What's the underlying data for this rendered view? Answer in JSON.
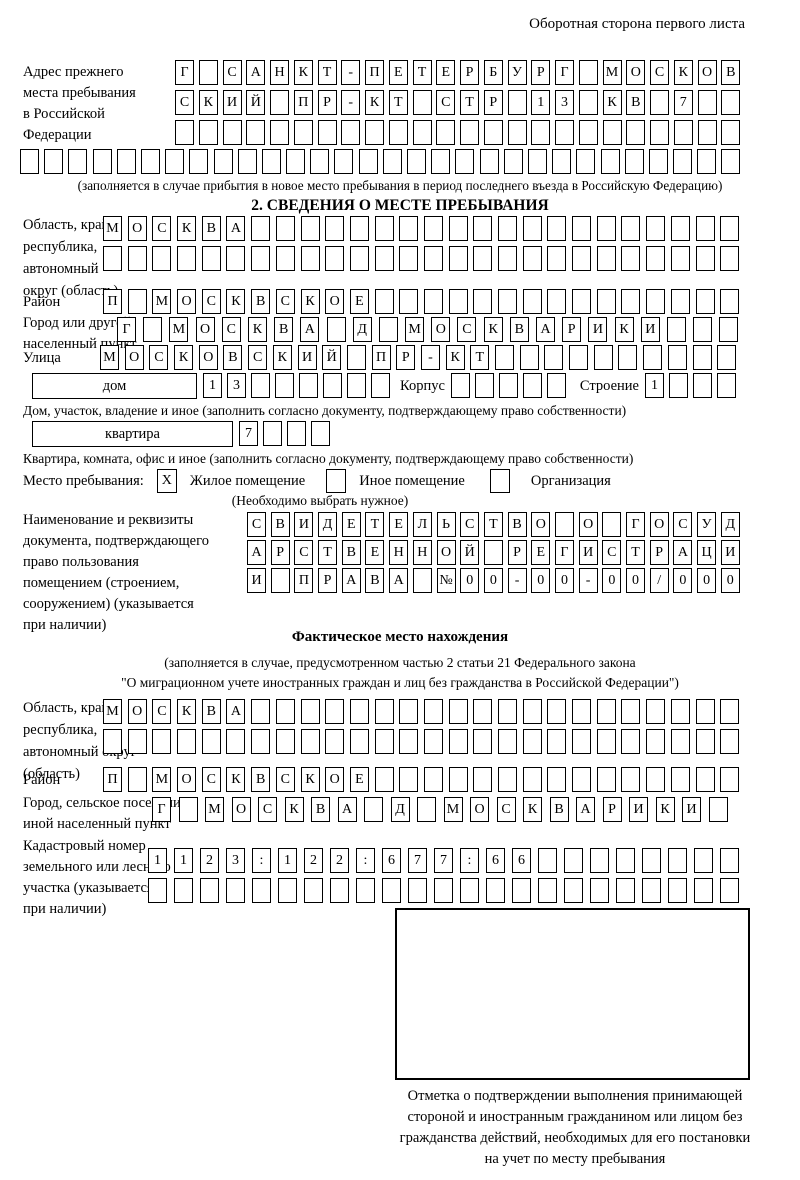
{
  "page": {
    "title": "Оборотная сторона первого листа"
  },
  "colors": {
    "ink": "#000000",
    "paper": "#ffffff"
  },
  "prev_address": {
    "label": "Адрес прежнего\nместа пребывания\nв Российской\nФедерации",
    "rows": [
      [
        "Г",
        "",
        "С",
        "А",
        "Н",
        "К",
        "Т",
        "-",
        "П",
        "Е",
        "Т",
        "Е",
        "Р",
        "Б",
        "У",
        "Р",
        "Г",
        "",
        "М",
        "О",
        "С",
        "К",
        "О",
        "В"
      ],
      [
        "С",
        "К",
        "И",
        "Й",
        "",
        "П",
        "Р",
        "-",
        "К",
        "Т",
        "",
        "С",
        "Т",
        "Р",
        "",
        "1",
        "3",
        "",
        "К",
        "В",
        "",
        "7",
        "",
        ""
      ],
      [
        "",
        "",
        "",
        "",
        "",
        "",
        "",
        "",
        "",
        "",
        "",
        "",
        "",
        "",
        "",
        "",
        "",
        "",
        "",
        "",
        "",
        "",
        "",
        ""
      ]
    ],
    "row_full": [
      "",
      "",
      "",
      "",
      "",
      "",
      "",
      "",
      "",
      "",
      "",
      "",
      "",
      "",
      "",
      "",
      "",
      "",
      "",
      "",
      "",
      "",
      "",
      "",
      "",
      "",
      "",
      "",
      "",
      ""
    ],
    "note": "(заполняется в случае прибытия в новое место пребывания в период последнего въезда в Российскую Федерацию)"
  },
  "stay_info": {
    "title": "2. СВЕДЕНИЯ О МЕСТЕ ПРЕБЫВАНИЯ",
    "region": {
      "label": "Область, край,\nреспублика,\nавтономный\nокруг (область)",
      "rows": [
        [
          "М",
          "О",
          "С",
          "К",
          "В",
          "А",
          "",
          "",
          "",
          "",
          "",
          "",
          "",
          "",
          "",
          "",
          "",
          "",
          "",
          "",
          "",
          "",
          "",
          "",
          "",
          ""
        ],
        [
          "",
          "",
          "",
          "",
          "",
          "",
          "",
          "",
          "",
          "",
          "",
          "",
          "",
          "",
          "",
          "",
          "",
          "",
          "",
          "",
          "",
          "",
          "",
          "",
          "",
          ""
        ]
      ]
    },
    "district": {
      "label": "Район",
      "row": [
        "П",
        "",
        "М",
        "О",
        "С",
        "К",
        "В",
        "С",
        "К",
        "О",
        "Е",
        "",
        "",
        "",
        "",
        "",
        "",
        "",
        "",
        "",
        "",
        "",
        "",
        "",
        "",
        ""
      ]
    },
    "city": {
      "label": "Город или другой\nнаселенный пункт",
      "row": [
        "Г",
        "",
        "М",
        "О",
        "С",
        "К",
        "В",
        "А",
        "",
        "Д",
        "",
        "М",
        "О",
        "С",
        "К",
        "В",
        "А",
        "Р",
        "И",
        "К",
        "И",
        "",
        "",
        ""
      ]
    },
    "street": {
      "label": "Улица",
      "row": [
        "М",
        "О",
        "С",
        "К",
        "О",
        "В",
        "С",
        "К",
        "И",
        "Й",
        "",
        "П",
        "Р",
        "-",
        "К",
        "Т",
        "",
        "",
        "",
        "",
        "",
        "",
        "",
        "",
        "",
        ""
      ]
    },
    "house": {
      "box_label": "дом",
      "cells": [
        "1",
        "3",
        "",
        "",
        "",
        "",
        "",
        ""
      ],
      "korpus_label": "Корпус",
      "korpus_cells": [
        "",
        "",
        "",
        "",
        ""
      ],
      "stroenie_label": "Строение",
      "stroenie_cells": [
        "1",
        "",
        "",
        ""
      ],
      "note": "Дом, участок, владение и иное (заполнить согласно документу, подтверждающему право собственности)"
    },
    "apartment": {
      "box_label": "квартира",
      "cells": [
        "7",
        "",
        "",
        ""
      ],
      "note": "Квартира, комната, офис и иное (заполнить согласно документу, подтверждающему право собственности)"
    },
    "residence": {
      "label": "Место пребывания:",
      "options": [
        {
          "label": "Жилое помещение",
          "mark": "X"
        },
        {
          "label": "Иное помещение",
          "mark": ""
        },
        {
          "label": "Организация",
          "mark": ""
        }
      ],
      "note": "(Необходимо выбрать нужное)"
    },
    "document": {
      "label": "Наименование и реквизиты\nдокумента, подтверждающего\nправо пользования\nпомещением (строением,\nсооружением) (указывается\nпри наличии)",
      "rows": [
        [
          "С",
          "В",
          "И",
          "Д",
          "Е",
          "Т",
          "Е",
          "Л",
          "Ь",
          "С",
          "Т",
          "В",
          "О",
          "",
          "О",
          "",
          "Г",
          "О",
          "С",
          "У",
          "Д"
        ],
        [
          "А",
          "Р",
          "С",
          "Т",
          "В",
          "Е",
          "Н",
          "Н",
          "О",
          "Й",
          "",
          "Р",
          "Е",
          "Г",
          "И",
          "С",
          "Т",
          "Р",
          "А",
          "Ц",
          "И"
        ],
        [
          "И",
          "",
          "П",
          "Р",
          "А",
          "В",
          "А",
          "",
          "№",
          "0",
          "0",
          "-",
          "0",
          "0",
          "-",
          "0",
          "0",
          "/",
          "0",
          "0",
          "0"
        ]
      ]
    }
  },
  "actual_location": {
    "title": "Фактическое место нахождения",
    "note": "(заполняется в случае, предусмотренном частью 2 статьи 21 Федерального закона\n\"О миграционном учете иностранных граждан и лиц без гражданства в Российской Федерации\")",
    "region": {
      "label": "Область, край,\nреспублика,\nавтономный округ\n(область)",
      "rows": [
        [
          "М",
          "О",
          "С",
          "К",
          "В",
          "А",
          "",
          "",
          "",
          "",
          "",
          "",
          "",
          "",
          "",
          "",
          "",
          "",
          "",
          "",
          "",
          "",
          "",
          "",
          "",
          ""
        ],
        [
          "",
          "",
          "",
          "",
          "",
          "",
          "",
          "",
          "",
          "",
          "",
          "",
          "",
          "",
          "",
          "",
          "",
          "",
          "",
          "",
          "",
          "",
          "",
          "",
          "",
          ""
        ]
      ]
    },
    "district": {
      "label": "Район",
      "row": [
        "П",
        "",
        "М",
        "О",
        "С",
        "К",
        "В",
        "С",
        "К",
        "О",
        "Е",
        "",
        "",
        "",
        "",
        "",
        "",
        "",
        "",
        "",
        "",
        "",
        "",
        "",
        "",
        ""
      ]
    },
    "city": {
      "label": "Город, сельское поселение,\nиной населенный пункт",
      "row": [
        "Г",
        "",
        "М",
        "О",
        "С",
        "К",
        "В",
        "А",
        "",
        "Д",
        "",
        "М",
        "О",
        "С",
        "К",
        "В",
        "А",
        "Р",
        "И",
        "К",
        "И",
        ""
      ]
    },
    "cadastral": {
      "label": "Кадастровый номер\nземельного или лесного\nучастка (указывается\nпри наличии)",
      "rows": [
        [
          "1",
          "1",
          "2",
          "3",
          ":",
          "1",
          "2",
          "2",
          ":",
          "6",
          "7",
          "7",
          ":",
          "6",
          "6",
          "",
          "",
          "",
          "",
          "",
          "",
          "",
          ""
        ],
        [
          "",
          "",
          "",
          "",
          "",
          "",
          "",
          "",
          "",
          "",
          "",
          "",
          "",
          "",
          "",
          "",
          "",
          "",
          "",
          "",
          "",
          "",
          ""
        ]
      ]
    },
    "stamp_caption": "Отметка о подтверждении выполнения принимающей\nстороной и иностранным гражданином или лицом без\nгражданства действий, необходимых для его постановки\nна учет по месту пребывания"
  }
}
